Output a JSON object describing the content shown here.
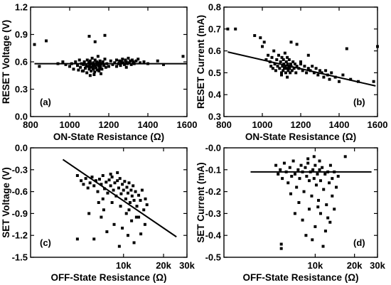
{
  "chart_data": [
    {
      "type": "scatter",
      "panel": "(a)",
      "xlabel": "ON-State Resistance (Ω)",
      "ylabel": "RESET Voltage (V)",
      "x_scale": "linear",
      "xlim": [
        800,
        1600
      ],
      "ylim": [
        0.0,
        1.2
      ],
      "xticks": [
        800,
        1000,
        1200,
        1400,
        1600
      ],
      "xtick_labels": [
        "800",
        "1000",
        "1200",
        "1400",
        "1600"
      ],
      "yticks": [
        0.0,
        0.3,
        0.6,
        0.9,
        1.2
      ],
      "ytick_labels": [
        "0.0",
        "0.3",
        "0.6",
        "0.9",
        "1.2"
      ],
      "fit_line": {
        "x": [
          820,
          1600
        ],
        "y": [
          0.58,
          0.58
        ]
      },
      "points": [
        [
          820,
          0.79
        ],
        [
          845,
          0.55
        ],
        [
          880,
          0.83
        ],
        [
          940,
          0.58
        ],
        [
          965,
          0.6
        ],
        [
          980,
          0.57
        ],
        [
          1000,
          0.55
        ],
        [
          1010,
          0.58
        ],
        [
          1020,
          0.52
        ],
        [
          1030,
          0.6
        ],
        [
          1040,
          0.56
        ],
        [
          1045,
          0.51
        ],
        [
          1050,
          0.62
        ],
        [
          1055,
          0.54
        ],
        [
          1060,
          0.58
        ],
        [
          1065,
          0.5
        ],
        [
          1070,
          0.57
        ],
        [
          1075,
          0.6
        ],
        [
          1080,
          0.53
        ],
        [
          1085,
          0.56
        ],
        [
          1088,
          0.48
        ],
        [
          1090,
          0.62
        ],
        [
          1095,
          0.55
        ],
        [
          1098,
          0.59
        ],
        [
          1100,
          0.52
        ],
        [
          1102,
          0.57
        ],
        [
          1105,
          0.61
        ],
        [
          1108,
          0.54
        ],
        [
          1110,
          0.5
        ],
        [
          1112,
          0.58
        ],
        [
          1115,
          0.64
        ],
        [
          1118,
          0.55
        ],
        [
          1120,
          0.52
        ],
        [
          1122,
          0.59
        ],
        [
          1125,
          0.57
        ],
        [
          1128,
          0.49
        ],
        [
          1130,
          0.62
        ],
        [
          1132,
          0.55
        ],
        [
          1135,
          0.53
        ],
        [
          1138,
          0.6
        ],
        [
          1140,
          0.57
        ],
        [
          1142,
          0.51
        ],
        [
          1145,
          0.66
        ],
        [
          1148,
          0.56
        ],
        [
          1150,
          0.59
        ],
        [
          1152,
          0.53
        ],
        [
          1155,
          0.61
        ],
        [
          1158,
          0.55
        ],
        [
          1160,
          0.58
        ],
        [
          1165,
          0.52
        ],
        [
          1170,
          0.6
        ],
        [
          1175,
          0.56
        ],
        [
          1180,
          0.63
        ],
        [
          1185,
          0.54
        ],
        [
          1190,
          0.58
        ],
        [
          1200,
          0.55
        ],
        [
          1210,
          0.61
        ],
        [
          1220,
          0.57
        ],
        [
          1230,
          0.59
        ],
        [
          1240,
          0.62
        ],
        [
          1250,
          0.58
        ],
        [
          1255,
          0.61
        ],
        [
          1260,
          0.56
        ],
        [
          1265,
          0.6
        ],
        [
          1270,
          0.63
        ],
        [
          1275,
          0.59
        ],
        [
          1280,
          0.57
        ],
        [
          1285,
          0.62
        ],
        [
          1290,
          0.6
        ],
        [
          1295,
          0.58
        ],
        [
          1300,
          0.64
        ],
        [
          1305,
          0.59
        ],
        [
          1310,
          0.61
        ],
        [
          1315,
          0.57
        ],
        [
          1320,
          0.62
        ],
        [
          1325,
          0.6
        ],
        [
          1330,
          0.58
        ],
        [
          1340,
          0.61
        ],
        [
          1350,
          0.63
        ],
        [
          1360,
          0.59
        ],
        [
          1380,
          0.6
        ],
        [
          1400,
          0.58
        ],
        [
          1450,
          0.61
        ],
        [
          1480,
          0.57
        ],
        [
          1580,
          0.66
        ],
        [
          1100,
          0.88
        ],
        [
          1130,
          0.82
        ],
        [
          1180,
          0.89
        ],
        [
          1105,
          0.45
        ],
        [
          1125,
          0.46
        ],
        [
          1160,
          0.47
        ],
        [
          1240,
          0.55
        ],
        [
          1290,
          0.54
        ],
        [
          1070,
          0.5
        ],
        [
          1150,
          0.5
        ]
      ]
    },
    {
      "type": "scatter",
      "panel": "(b)",
      "xlabel": "ON-State Resistance (Ω)",
      "ylabel": "RESET Current (mA)",
      "x_scale": "linear",
      "xlim": [
        800,
        1600
      ],
      "ylim": [
        0.3,
        0.8
      ],
      "xticks": [
        800,
        1000,
        1200,
        1400,
        1600
      ],
      "xtick_labels": [
        "800",
        "1000",
        "1200",
        "1400",
        "1600"
      ],
      "yticks": [
        0.3,
        0.4,
        0.5,
        0.6,
        0.7,
        0.8
      ],
      "ytick_labels": [
        "0.3",
        "0.4",
        "0.5",
        "0.6",
        "0.7",
        "0.8"
      ],
      "fit_line": {
        "x": [
          820,
          1590
        ],
        "y": [
          0.595,
          0.44
        ]
      },
      "points": [
        [
          820,
          0.7
        ],
        [
          860,
          0.7
        ],
        [
          960,
          0.67
        ],
        [
          990,
          0.66
        ],
        [
          1000,
          0.62
        ],
        [
          1010,
          0.64
        ],
        [
          1020,
          0.56
        ],
        [
          1030,
          0.58
        ],
        [
          1040,
          0.55
        ],
        [
          1045,
          0.53
        ],
        [
          1050,
          0.57
        ],
        [
          1055,
          0.52
        ],
        [
          1060,
          0.6
        ],
        [
          1065,
          0.54
        ],
        [
          1070,
          0.51
        ],
        [
          1075,
          0.56
        ],
        [
          1080,
          0.53
        ],
        [
          1085,
          0.58
        ],
        [
          1090,
          0.52
        ],
        [
          1095,
          0.55
        ],
        [
          1100,
          0.5
        ],
        [
          1102,
          0.57
        ],
        [
          1105,
          0.53
        ],
        [
          1108,
          0.51
        ],
        [
          1110,
          0.56
        ],
        [
          1112,
          0.54
        ],
        [
          1115,
          0.52
        ],
        [
          1118,
          0.59
        ],
        [
          1120,
          0.53
        ],
        [
          1122,
          0.5
        ],
        [
          1125,
          0.55
        ],
        [
          1128,
          0.52
        ],
        [
          1130,
          0.57
        ],
        [
          1132,
          0.54
        ],
        [
          1135,
          0.51
        ],
        [
          1138,
          0.53
        ],
        [
          1140,
          0.56
        ],
        [
          1142,
          0.52
        ],
        [
          1145,
          0.5
        ],
        [
          1148,
          0.54
        ],
        [
          1150,
          0.53
        ],
        [
          1155,
          0.51
        ],
        [
          1160,
          0.55
        ],
        [
          1165,
          0.52
        ],
        [
          1170,
          0.54
        ],
        [
          1175,
          0.5
        ],
        [
          1180,
          0.53
        ],
        [
          1190,
          0.52
        ],
        [
          1200,
          0.54
        ],
        [
          1210,
          0.51
        ],
        [
          1220,
          0.53
        ],
        [
          1230,
          0.5
        ],
        [
          1240,
          0.52
        ],
        [
          1250,
          0.51
        ],
        [
          1260,
          0.53
        ],
        [
          1270,
          0.5
        ],
        [
          1280,
          0.52
        ],
        [
          1290,
          0.49
        ],
        [
          1300,
          0.51
        ],
        [
          1310,
          0.5
        ],
        [
          1320,
          0.48
        ],
        [
          1330,
          0.51
        ],
        [
          1340,
          0.49
        ],
        [
          1350,
          0.47
        ],
        [
          1360,
          0.5
        ],
        [
          1380,
          0.48
        ],
        [
          1400,
          0.46
        ],
        [
          1420,
          0.49
        ],
        [
          1440,
          0.61
        ],
        [
          1460,
          0.47
        ],
        [
          1500,
          0.46
        ],
        [
          1580,
          0.46
        ],
        [
          1600,
          0.62
        ],
        [
          1150,
          0.64
        ],
        [
          1180,
          0.63
        ],
        [
          1100,
          0.49
        ],
        [
          1130,
          0.48
        ],
        [
          1240,
          0.58
        ],
        [
          1200,
          0.55
        ]
      ]
    },
    {
      "type": "scatter",
      "panel": "(c)",
      "xlabel": "OFF-State Resistance (Ω)",
      "ylabel": "SET Voltage (V)",
      "x_scale": "log",
      "xlim": [
        2000,
        30000
      ],
      "ylim": [
        -1.5,
        0.0
      ],
      "xticks": [
        10000,
        20000,
        30000
      ],
      "xtick_labels": [
        "10k",
        "20k",
        "30k"
      ],
      "yticks": [
        0.0,
        -0.3,
        -0.6,
        -0.9,
        -1.2,
        -1.5
      ],
      "ytick_labels": [
        "0.0",
        "-0.3",
        "-0.6",
        "-0.9",
        "-1.2",
        "-1.5"
      ],
      "fit_line": {
        "x": [
          3500,
          25000
        ],
        "y": [
          -0.16,
          -1.22
        ]
      },
      "points": [
        [
          4500,
          -0.38
        ],
        [
          4800,
          -0.45
        ],
        [
          5000,
          -0.5
        ],
        [
          5200,
          -0.42
        ],
        [
          5400,
          -0.55
        ],
        [
          5600,
          -0.48
        ],
        [
          5800,
          -0.4
        ],
        [
          6000,
          -0.52
        ],
        [
          6200,
          -0.45
        ],
        [
          6400,
          -0.6
        ],
        [
          6600,
          -0.43
        ],
        [
          6800,
          -0.5
        ],
        [
          7000,
          -0.38
        ],
        [
          7200,
          -0.56
        ],
        [
          7400,
          -0.47
        ],
        [
          7600,
          -0.62
        ],
        [
          7800,
          -0.44
        ],
        [
          8000,
          -0.52
        ],
        [
          8200,
          -0.4
        ],
        [
          8400,
          -0.58
        ],
        [
          8600,
          -0.48
        ],
        [
          8800,
          -0.66
        ],
        [
          9000,
          -0.45
        ],
        [
          9200,
          -0.55
        ],
        [
          9400,
          -0.42
        ],
        [
          9600,
          -0.63
        ],
        [
          9800,
          -0.5
        ],
        [
          10000,
          -0.58
        ],
        [
          10200,
          -0.46
        ],
        [
          10400,
          -0.7
        ],
        [
          10600,
          -0.54
        ],
        [
          10800,
          -0.62
        ],
        [
          11000,
          -0.48
        ],
        [
          11200,
          -0.75
        ],
        [
          11400,
          -0.58
        ],
        [
          11600,
          -0.66
        ],
        [
          11800,
          -0.52
        ],
        [
          12000,
          -0.72
        ],
        [
          12300,
          -0.6
        ],
        [
          12600,
          -0.8
        ],
        [
          13000,
          -0.65
        ],
        [
          13400,
          -0.72
        ],
        [
          13800,
          -0.58
        ],
        [
          14200,
          -0.85
        ],
        [
          14600,
          -0.7
        ],
        [
          15000,
          -0.78
        ],
        [
          8000,
          -0.36
        ],
        [
          9000,
          -0.34
        ],
        [
          7000,
          -0.7
        ],
        [
          6500,
          -0.75
        ],
        [
          9500,
          -0.8
        ],
        [
          10500,
          -0.9
        ],
        [
          11500,
          -1.0
        ],
        [
          12500,
          -0.95
        ],
        [
          8500,
          -1.05
        ],
        [
          9800,
          -1.1
        ],
        [
          7500,
          -1.15
        ],
        [
          10800,
          -1.2
        ],
        [
          6000,
          -1.25
        ],
        [
          13500,
          -1.18
        ],
        [
          14500,
          -1.05
        ],
        [
          5500,
          -0.9
        ],
        [
          12000,
          -1.3
        ],
        [
          9300,
          -1.35
        ],
        [
          4500,
          -1.25
        ],
        [
          6800,
          -0.95
        ],
        [
          11000,
          -0.85
        ],
        [
          13000,
          -0.95
        ],
        [
          8200,
          -0.75
        ],
        [
          7100,
          -0.85
        ]
      ]
    },
    {
      "type": "scatter",
      "panel": "(d)",
      "xlabel": "OFF-State Resistance (Ω)",
      "ylabel": "SET Current (mA)",
      "x_scale": "log",
      "xlim": [
        2000,
        30000
      ],
      "ylim": [
        -0.5,
        0.0
      ],
      "xticks": [
        10000,
        20000,
        30000
      ],
      "xtick_labels": [
        "10k",
        "20k",
        "30k"
      ],
      "yticks": [
        0.0,
        -0.1,
        -0.2,
        -0.3,
        -0.4,
        -0.5
      ],
      "ytick_labels": [
        "-0.0",
        "-0.1",
        "-0.2",
        "-0.3",
        "-0.4",
        "-0.5"
      ],
      "fit_line": {
        "x": [
          3200,
          27000
        ],
        "y": [
          -0.11,
          -0.11
        ]
      },
      "points": [
        [
          5000,
          -0.08
        ],
        [
          5200,
          -0.12
        ],
        [
          5400,
          -0.1
        ],
        [
          5600,
          -0.14
        ],
        [
          5800,
          -0.07
        ],
        [
          6000,
          -0.11
        ],
        [
          6200,
          -0.16
        ],
        [
          6400,
          -0.09
        ],
        [
          6600,
          -0.13
        ],
        [
          6800,
          -0.06
        ],
        [
          7000,
          -0.12
        ],
        [
          7200,
          -0.18
        ],
        [
          7400,
          -0.1
        ],
        [
          7600,
          -0.14
        ],
        [
          7800,
          -0.08
        ],
        [
          8000,
          -0.11
        ],
        [
          8200,
          -0.2
        ],
        [
          8400,
          -0.09
        ],
        [
          8600,
          -0.13
        ],
        [
          8800,
          -0.07
        ],
        [
          9000,
          -0.15
        ],
        [
          9200,
          -0.11
        ],
        [
          9400,
          -0.22
        ],
        [
          9600,
          -0.1
        ],
        [
          9800,
          -0.14
        ],
        [
          10000,
          -0.08
        ],
        [
          10200,
          -0.17
        ],
        [
          10400,
          -0.12
        ],
        [
          10600,
          -0.24
        ],
        [
          10800,
          -0.1
        ],
        [
          11000,
          -0.15
        ],
        [
          11300,
          -0.09
        ],
        [
          11600,
          -0.19
        ],
        [
          11900,
          -0.12
        ],
        [
          12200,
          -0.26
        ],
        [
          12500,
          -0.11
        ],
        [
          12800,
          -0.16
        ],
        [
          13100,
          -0.08
        ],
        [
          13500,
          -0.14
        ],
        [
          14000,
          -0.11
        ],
        [
          14500,
          -0.18
        ],
        [
          15000,
          -0.13
        ],
        [
          17000,
          -0.04
        ],
        [
          5500,
          -0.44
        ],
        [
          5500,
          -0.46
        ],
        [
          7000,
          -0.3
        ],
        [
          8000,
          -0.33
        ],
        [
          9000,
          -0.28
        ],
        [
          10000,
          -0.36
        ],
        [
          11000,
          -0.3
        ],
        [
          12000,
          -0.38
        ],
        [
          13000,
          -0.34
        ],
        [
          8500,
          -0.4
        ],
        [
          9500,
          -0.42
        ],
        [
          11500,
          -0.45
        ],
        [
          10500,
          -0.27
        ],
        [
          12500,
          -0.32
        ],
        [
          7500,
          -0.25
        ],
        [
          14000,
          -0.28
        ],
        [
          13500,
          -0.22
        ],
        [
          6500,
          -0.21
        ],
        [
          9800,
          -0.04
        ],
        [
          8800,
          -0.05
        ],
        [
          10800,
          -0.06
        ]
      ]
    }
  ]
}
